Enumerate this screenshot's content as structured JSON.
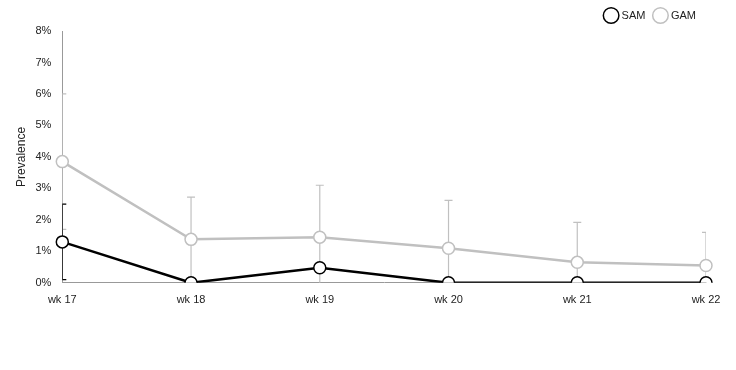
{
  "chart_data": {
    "type": "line",
    "y_label": "Prevalence",
    "categories": [
      "wk 17",
      "wk 18",
      "wk 19",
      "wk 20",
      "wk 21",
      "wk 22"
    ],
    "series": [
      {
        "name": "SAM",
        "color": "#000000",
        "marker": "circle",
        "line_style": "solid",
        "values": [
          1.3,
          0,
          0.48,
          0,
          0,
          0
        ],
        "errors": [
          1.2,
          0,
          0,
          0,
          0,
          0
        ]
      },
      {
        "name": "GAM",
        "color": "#c0c0c0",
        "marker": "circle",
        "line_style": "solid",
        "values": [
          3.85,
          1.38,
          1.45,
          1.1,
          0.65,
          0.55
        ],
        "errors": [
          2.15,
          1.34,
          1.65,
          1.52,
          1.27,
          1.05
        ]
      }
    ],
    "ylim": [
      0,
      8
    ],
    "yticks": [
      {
        "value": 0,
        "label": "0%"
      },
      {
        "value": 1,
        "label": "1%"
      },
      {
        "value": 2,
        "label": "2%"
      },
      {
        "value": 3,
        "label": "3%"
      },
      {
        "value": 4,
        "label": "4%"
      },
      {
        "value": 5,
        "label": "5%"
      },
      {
        "value": 6,
        "label": "6%"
      },
      {
        "value": 7,
        "label": "7%"
      },
      {
        "value": 8,
        "label": "8%"
      }
    ],
    "grid": false,
    "legend": "top-right"
  }
}
